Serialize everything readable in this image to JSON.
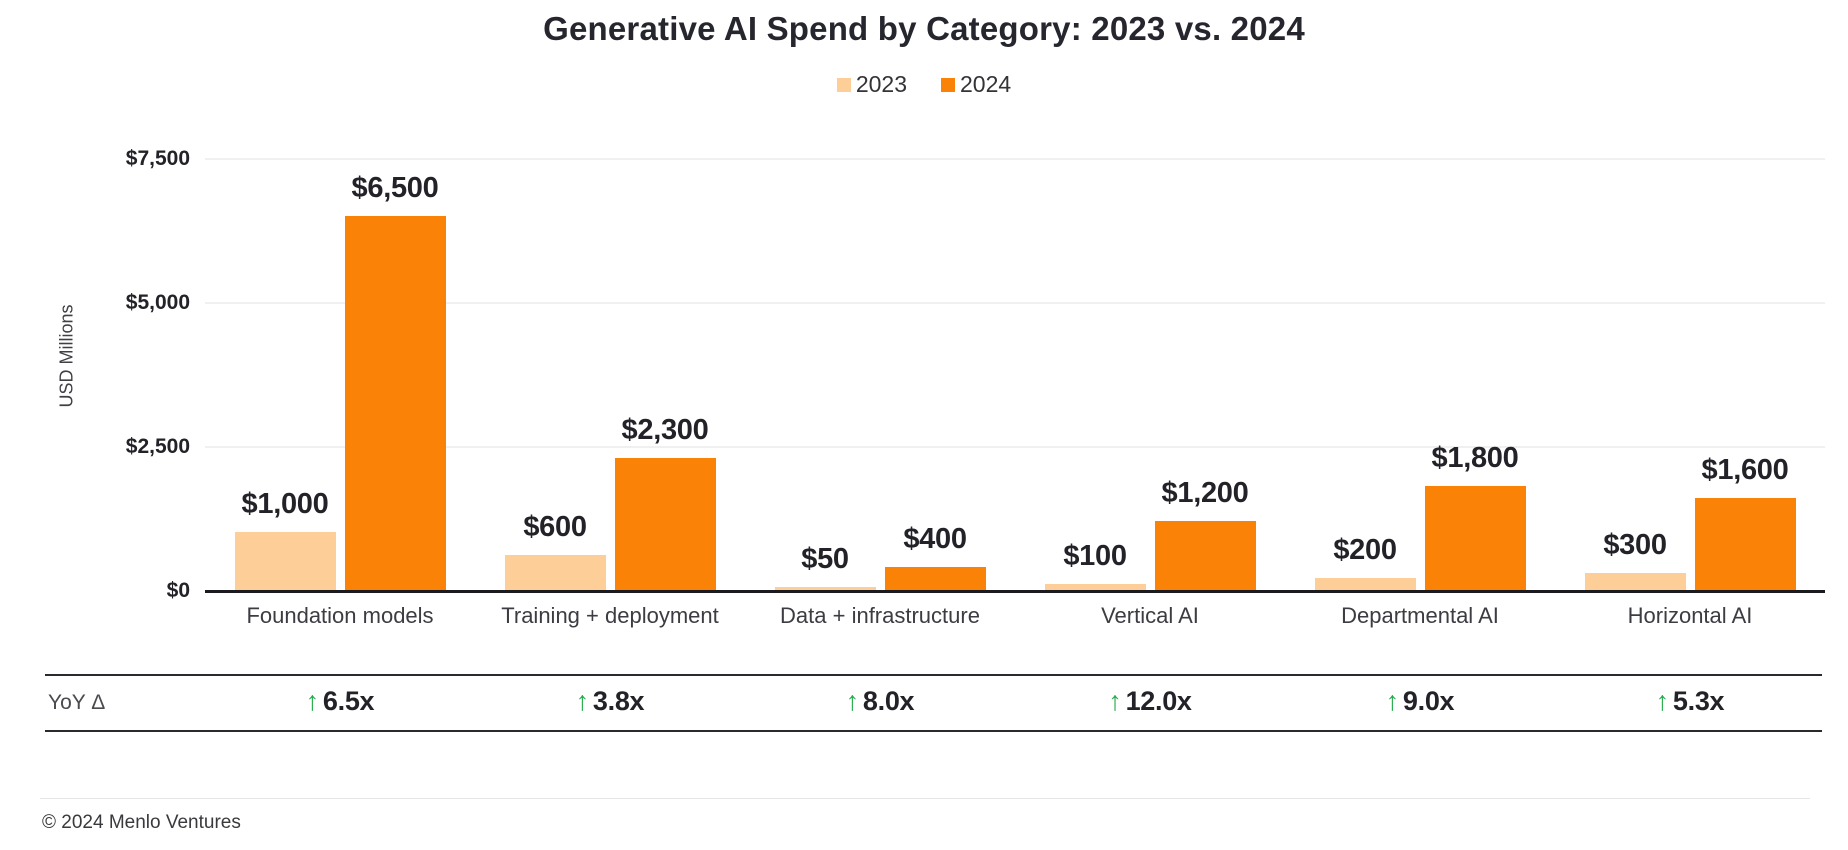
{
  "title": "Generative AI Spend by Category: 2023 vs. 2024",
  "chart_data": {
    "type": "bar",
    "title": "Generative AI Spend by Category: 2023 vs. 2024",
    "xlabel": "",
    "ylabel": "USD Millions",
    "ylim": [
      0,
      7500
    ],
    "grid": "horizontal",
    "legend_position": "top",
    "yticks": [
      {
        "value": 0,
        "label": "$0"
      },
      {
        "value": 2500,
        "label": "$2,500"
      },
      {
        "value": 5000,
        "label": "$5,000"
      },
      {
        "value": 7500,
        "label": "$7,500"
      }
    ],
    "categories": [
      "Foundation models",
      "Training + deployment",
      "Data + infrastructure",
      "Vertical AI",
      "Departmental AI",
      "Horizontal AI"
    ],
    "series": [
      {
        "name": "2023",
        "color": "#FDCE98",
        "values": [
          1000,
          600,
          50,
          100,
          200,
          300
        ],
        "labels": [
          "$1,000",
          "$600",
          "$50",
          "$100",
          "$200",
          "$300"
        ]
      },
      {
        "name": "2024",
        "color": "#FA8307",
        "values": [
          6500,
          2300,
          400,
          1200,
          1800,
          1600
        ],
        "labels": [
          "$6,500",
          "$2,300",
          "$400",
          "$1,200",
          "$1,800",
          "$1,600"
        ]
      }
    ],
    "yoy_row": {
      "row_label": "YoY Δ",
      "arrow": "↑",
      "arrow_color": "#28AB4F",
      "values": [
        "6.5x",
        "3.8x",
        "8.0x",
        "12.0x",
        "9.0x",
        "5.3x"
      ]
    }
  },
  "footer": {
    "copyright": "© 2024 Menlo Ventures"
  },
  "colors": {
    "bar_2023": "#FDCE98",
    "bar_2024": "#FA8307",
    "yoy_green": "#28AB4F",
    "axis_line": "#1b1b1f",
    "gridline": "#f0f0f1",
    "title_text": "#26262e"
  }
}
